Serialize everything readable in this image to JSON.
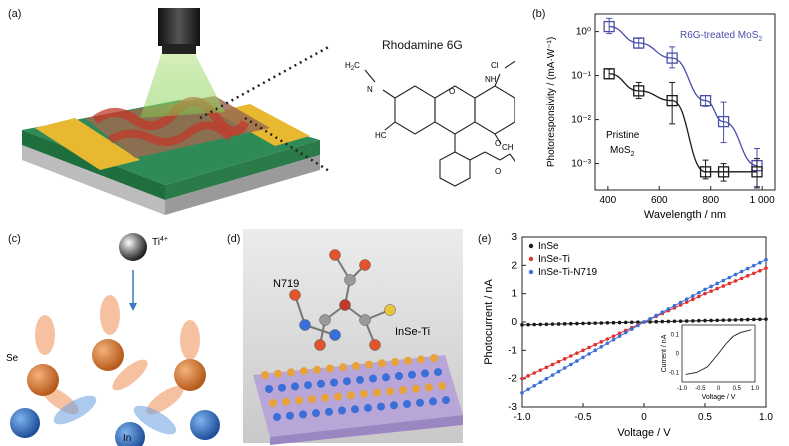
{
  "panels": {
    "a": {
      "label": "(a)",
      "molecule_title": "Rhodamine 6G",
      "atoms": {
        "ch3": "CH",
        "three": "3",
        "h3c": "H",
        "h3c_c": "C",
        "nh_left": "N",
        "nh_left_h": "H",
        "nh_right": "NH",
        "cl": "Cl",
        "o_ring": "O",
        "o_carbonyl": "O",
        "o_ester": "O",
        "ch3_ester": "CH"
      }
    },
    "b": {
      "label": "(b)"
    },
    "c": {
      "label": "(c)",
      "ion": "Ti",
      "ion_charge": "4+",
      "se": "Se",
      "in": "In"
    },
    "d": {
      "label": "(d)",
      "molecule": "N719",
      "substrate": "InSe-Ti"
    },
    "e": {
      "label": "(e)"
    }
  },
  "colors": {
    "black_series": "#1a1a1a",
    "blue_series": "#4a4fa8",
    "red_series": "#e03030",
    "blue2_series": "#3a6fd8"
  },
  "chart_data": [
    {
      "type": "line",
      "panel": "b",
      "xlabel": "Wavelength / nm",
      "ylabel": "Photoresponsivity / (mA·W⁻¹)",
      "x_ticks": [
        "400",
        "600",
        "800",
        "1 000"
      ],
      "y_ticks": [
        "10⁻³",
        "10⁻²",
        "10⁻¹",
        "10⁰"
      ],
      "xlim": [
        350,
        1050
      ],
      "ylim_log10": [
        -3.6,
        0.4
      ],
      "y_scale": "log",
      "series": [
        {
          "name": "R6G-treated MoS₂",
          "color": "#4a4fa8",
          "x": [
            405,
            520,
            650,
            780,
            850,
            980
          ],
          "y": [
            1.3,
            0.55,
            0.25,
            0.027,
            0.009,
            0.0009
          ],
          "err_hi": [
            2.0,
            0.7,
            0.45,
            0.035,
            0.025,
            0.0022
          ],
          "err_lo": [
            0.9,
            0.42,
            0.15,
            0.02,
            0.003,
            0.0003
          ]
        },
        {
          "name": "Pristine MoS₂",
          "color": "#1a1a1a",
          "x": [
            405,
            520,
            650,
            780,
            850,
            980
          ],
          "y": [
            0.11,
            0.045,
            0.027,
            0.00065,
            0.00065,
            0.00065
          ],
          "err_hi": [
            0.14,
            0.07,
            0.07,
            0.0012,
            0.001,
            0.0013
          ],
          "err_lo": [
            0.085,
            0.03,
            0.008,
            0.00045,
            0.0004,
            0.00028
          ]
        }
      ],
      "legend_labels": {
        "blue": "R6G-treated MoS",
        "blue_sub": "2",
        "black_line1": "Pristine",
        "black_line2": "MoS",
        "black_sub": "2"
      }
    },
    {
      "type": "line",
      "panel": "e",
      "xlabel": "Voltage / V",
      "ylabel": "Photocurrent / nA",
      "x_ticks": [
        "-1.0",
        "-0.5",
        "0",
        "0.5",
        "1.0"
      ],
      "y_ticks": [
        "-3",
        "-2",
        "-1",
        "0",
        "1",
        "2",
        "3"
      ],
      "xlim": [
        -1.0,
        1.0
      ],
      "ylim": [
        -3,
        3
      ],
      "legend_placement": "top-left",
      "series": [
        {
          "name": "InSe",
          "color": "#1a1a1a",
          "x": [
            -1.0,
            1.0
          ],
          "y": [
            -0.1,
            0.1
          ]
        },
        {
          "name": "InSe-Ti",
          "color": "#e03030",
          "x": [
            -1.0,
            -0.5,
            0.0,
            0.5,
            1.0
          ],
          "y": [
            -2.0,
            -1.0,
            0.0,
            1.0,
            1.9
          ]
        },
        {
          "name": "InSe-Ti-N719",
          "color": "#3a6fd8",
          "x": [
            -1.0,
            -0.5,
            0.0,
            0.5,
            1.0
          ],
          "y": [
            -2.5,
            -1.25,
            0.0,
            1.15,
            2.2
          ]
        }
      ]
    },
    {
      "type": "line",
      "panel": "e-inset",
      "xlabel": "Voltage / V",
      "ylabel": "Current / nA",
      "x_ticks": [
        "-1.0",
        "-0.5",
        "0",
        "0.5",
        "1.0"
      ],
      "y_ticks": [
        "-0.1",
        "0",
        "0.1"
      ],
      "xlim": [
        -1.0,
        1.0
      ],
      "ylim": [
        -0.15,
        0.15
      ],
      "series": [
        {
          "name": "",
          "color": "#1a1a1a",
          "x": [
            -0.9,
            -0.6,
            -0.3,
            0.0,
            0.2,
            0.4,
            0.6,
            0.8,
            0.9
          ],
          "y": [
            -0.11,
            -0.1,
            -0.07,
            0.0,
            0.05,
            0.09,
            0.11,
            0.12,
            0.125
          ]
        }
      ]
    }
  ]
}
